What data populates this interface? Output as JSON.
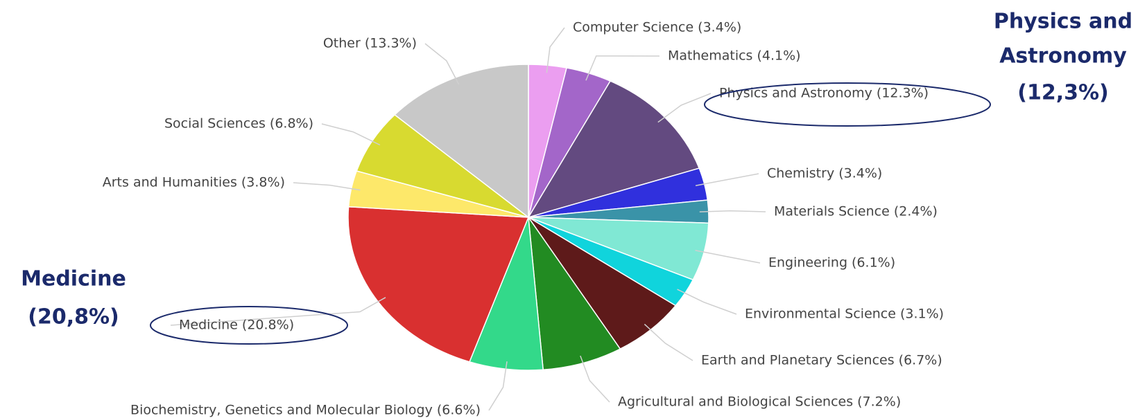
{
  "chart_data": {
    "type": "pie",
    "labels": [
      "Computer Science (3.4%)",
      "Mathematics (4.1%)",
      "Physics and Astronomy (12.3%)",
      "Chemistry (3.4%)",
      "Materials Science (2.4%)",
      "Engineering (6.1%)",
      "Environmental Science (3.1%)",
      "Earth and Planetary Sciences (6.7%)",
      "Agricultural and Biological Sciences (7.2%)",
      "Biochemistry, Genetics and Molecular Biology (6.6%)",
      "Medicine (20.8%)",
      "Arts and Humanities (3.8%)",
      "Social Sciences (6.8%)",
      "Other (13.3%)"
    ],
    "values": [
      3.4,
      4.1,
      12.3,
      3.4,
      2.4,
      6.1,
      3.1,
      6.7,
      7.2,
      6.6,
      20.8,
      3.8,
      6.8,
      13.3
    ],
    "colors": [
      "#eb9ef0",
      "#a366c9",
      "#634a80",
      "#3030dd",
      "#3a93a8",
      "#80e8d4",
      "#10d4dc",
      "#5e1a1a",
      "#228b22",
      "#33d98a",
      "#d93030",
      "#fde86a",
      "#d8da30",
      "#c8c8c8"
    ],
    "annotations": [
      {
        "lines": [
          "Physics and",
          "Astronomy",
          "(12,3%)"
        ]
      },
      {
        "lines": [
          "Medicine",
          "(20,8%)"
        ]
      }
    ]
  }
}
